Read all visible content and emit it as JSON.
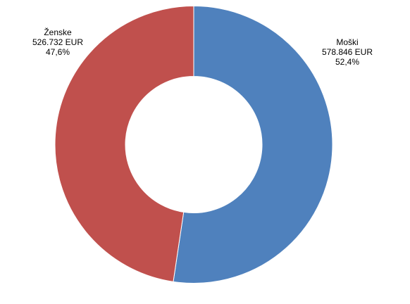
{
  "chart_data": {
    "type": "donut",
    "categories": [
      "Moški",
      "Ženske"
    ],
    "values": [
      578846,
      526732
    ],
    "value_labels": [
      "578.846 EUR",
      "526.732 EUR"
    ],
    "percentages": [
      52.4,
      47.6
    ],
    "percentage_labels": [
      "52,4%",
      "47,6%"
    ],
    "colors": [
      "#4f81bd",
      "#c0504d"
    ]
  }
}
